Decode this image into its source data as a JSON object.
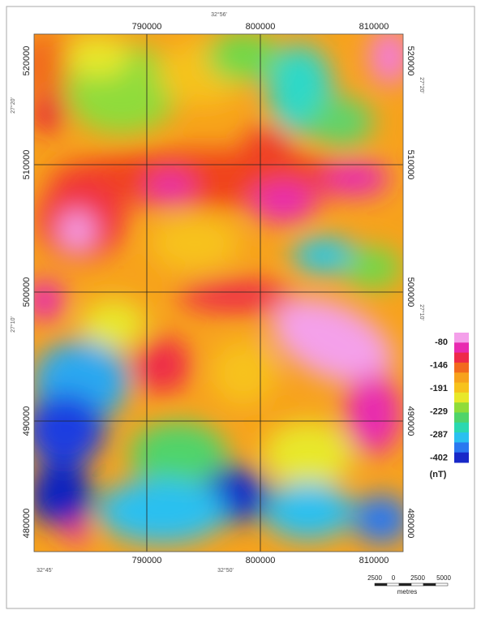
{
  "map": {
    "easting_labels": [
      "790000",
      "800000",
      "810000"
    ],
    "northing_labels_left": [
      "520000",
      "510000",
      "500000",
      "490000",
      "480000"
    ],
    "northing_labels_right": [
      "520000",
      "510000",
      "500000",
      "490000",
      "480000"
    ],
    "top_longitude": "32°56'",
    "bottom_longitudes": [
      "32°45'",
      "32°50'"
    ],
    "left_latitudes": [
      "27°20'",
      "27°10'"
    ],
    "right_latitudes": [
      "27°20'",
      "27°10'"
    ],
    "legend": {
      "labels": [
        "-80",
        "-146",
        "-191",
        "-229",
        "-287",
        "-402"
      ],
      "unit": "(nT)"
    },
    "scale_bar": {
      "labels": [
        "2500",
        "0",
        "2500",
        "5000"
      ],
      "unit": "metres"
    }
  }
}
